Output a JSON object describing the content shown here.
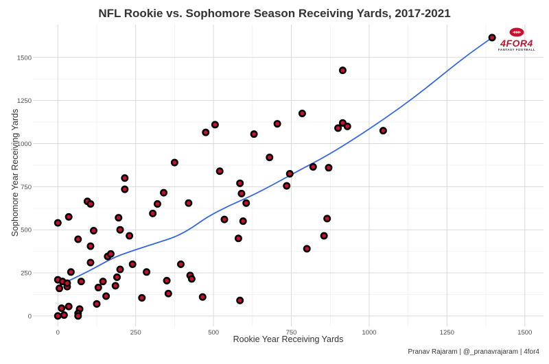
{
  "chart_data": {
    "type": "scatter",
    "title": "NFL Rookie vs. Sophomore Season Receiving Yards, 2017-2021",
    "xlabel": "Rookie Year Receiving Yards",
    "ylabel": "Sophomore Year Receiving Yards",
    "xlim": [
      -80,
      1560
    ],
    "ylim": [
      -60,
      1690
    ],
    "x_ticks": [
      0,
      250,
      500,
      750,
      1000,
      1250,
      1500
    ],
    "y_ticks": [
      0,
      250,
      500,
      750,
      1000,
      1250,
      1500
    ],
    "grid": true,
    "point_fill": "#c8102e",
    "point_stroke": "#000000",
    "trend_color": "#3366e6",
    "points": [
      {
        "x": 0,
        "y": 540
      },
      {
        "x": 0,
        "y": 210
      },
      {
        "x": 5,
        "y": 160
      },
      {
        "x": 15,
        "y": 200
      },
      {
        "x": 12,
        "y": 45
      },
      {
        "x": 20,
        "y": 5
      },
      {
        "x": 0,
        "y": 0
      },
      {
        "x": 30,
        "y": 170
      },
      {
        "x": 30,
        "y": 190
      },
      {
        "x": 35,
        "y": 575
      },
      {
        "x": 35,
        "y": 55
      },
      {
        "x": 42,
        "y": 255
      },
      {
        "x": 65,
        "y": 445
      },
      {
        "x": 70,
        "y": 40
      },
      {
        "x": 65,
        "y": 15
      },
      {
        "x": 65,
        "y": 0
      },
      {
        "x": 75,
        "y": 200
      },
      {
        "x": 95,
        "y": 665
      },
      {
        "x": 105,
        "y": 650
      },
      {
        "x": 105,
        "y": 405
      },
      {
        "x": 105,
        "y": 310
      },
      {
        "x": 115,
        "y": 495
      },
      {
        "x": 125,
        "y": 70
      },
      {
        "x": 130,
        "y": 165
      },
      {
        "x": 145,
        "y": 200
      },
      {
        "x": 155,
        "y": 115
      },
      {
        "x": 160,
        "y": 345
      },
      {
        "x": 170,
        "y": 360
      },
      {
        "x": 185,
        "y": 175
      },
      {
        "x": 190,
        "y": 225
      },
      {
        "x": 195,
        "y": 570
      },
      {
        "x": 200,
        "y": 500
      },
      {
        "x": 200,
        "y": 270
      },
      {
        "x": 215,
        "y": 800
      },
      {
        "x": 215,
        "y": 735
      },
      {
        "x": 230,
        "y": 465
      },
      {
        "x": 240,
        "y": 300
      },
      {
        "x": 270,
        "y": 105
      },
      {
        "x": 285,
        "y": 255
      },
      {
        "x": 305,
        "y": 595
      },
      {
        "x": 320,
        "y": 650
      },
      {
        "x": 340,
        "y": 715
      },
      {
        "x": 350,
        "y": 205
      },
      {
        "x": 355,
        "y": 130
      },
      {
        "x": 375,
        "y": 890
      },
      {
        "x": 395,
        "y": 300
      },
      {
        "x": 420,
        "y": 655
      },
      {
        "x": 425,
        "y": 235
      },
      {
        "x": 430,
        "y": 215
      },
      {
        "x": 465,
        "y": 110
      },
      {
        "x": 475,
        "y": 1065
      },
      {
        "x": 505,
        "y": 1110
      },
      {
        "x": 520,
        "y": 840
      },
      {
        "x": 535,
        "y": 560
      },
      {
        "x": 580,
        "y": 450
      },
      {
        "x": 585,
        "y": 770
      },
      {
        "x": 585,
        "y": 90
      },
      {
        "x": 590,
        "y": 710
      },
      {
        "x": 595,
        "y": 550
      },
      {
        "x": 605,
        "y": 655
      },
      {
        "x": 630,
        "y": 1055
      },
      {
        "x": 680,
        "y": 920
      },
      {
        "x": 705,
        "y": 1115
      },
      {
        "x": 735,
        "y": 755
      },
      {
        "x": 745,
        "y": 825
      },
      {
        "x": 785,
        "y": 1175
      },
      {
        "x": 800,
        "y": 390
      },
      {
        "x": 820,
        "y": 865
      },
      {
        "x": 855,
        "y": 465
      },
      {
        "x": 865,
        "y": 565
      },
      {
        "x": 870,
        "y": 860
      },
      {
        "x": 900,
        "y": 1090
      },
      {
        "x": 915,
        "y": 1425
      },
      {
        "x": 915,
        "y": 1120
      },
      {
        "x": 930,
        "y": 1100
      },
      {
        "x": 1045,
        "y": 1075
      },
      {
        "x": 1395,
        "y": 1615
      }
    ],
    "trend": [
      {
        "x": 0,
        "y": 175
      },
      {
        "x": 60,
        "y": 225
      },
      {
        "x": 120,
        "y": 280
      },
      {
        "x": 180,
        "y": 340
      },
      {
        "x": 250,
        "y": 385
      },
      {
        "x": 320,
        "y": 425
      },
      {
        "x": 380,
        "y": 460
      },
      {
        "x": 430,
        "y": 510
      },
      {
        "x": 480,
        "y": 575
      },
      {
        "x": 550,
        "y": 640
      },
      {
        "x": 620,
        "y": 695
      },
      {
        "x": 700,
        "y": 770
      },
      {
        "x": 780,
        "y": 850
      },
      {
        "x": 860,
        "y": 925
      },
      {
        "x": 950,
        "y": 1025
      },
      {
        "x": 1050,
        "y": 1145
      },
      {
        "x": 1150,
        "y": 1275
      },
      {
        "x": 1250,
        "y": 1420
      },
      {
        "x": 1320,
        "y": 1520
      },
      {
        "x": 1395,
        "y": 1615
      }
    ]
  },
  "caption": "Pranav Rajaram | @_pranavrajaram | 4for4",
  "logo": {
    "text": "4FOR4",
    "subtext": "FANTASY FOOTBALL"
  }
}
